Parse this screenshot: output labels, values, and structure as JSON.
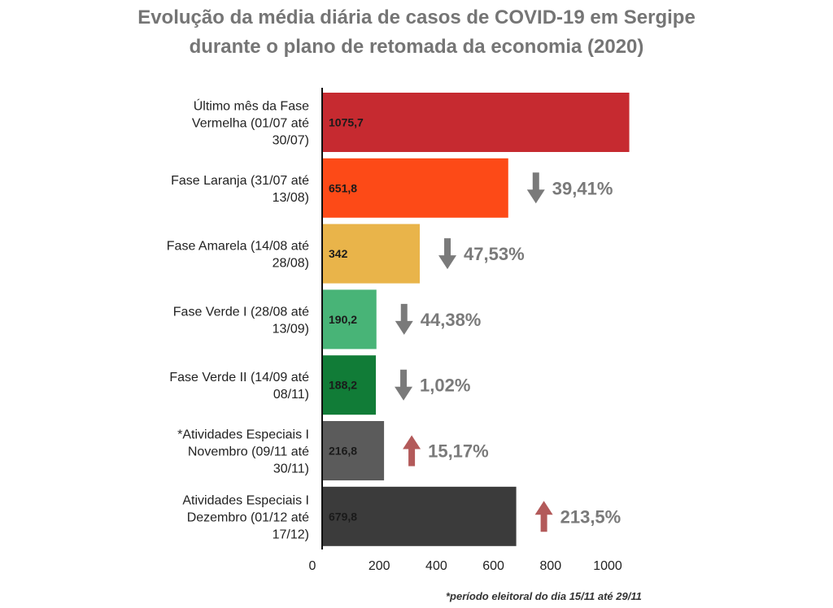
{
  "title_lines": [
    "Evolução da média diária de casos de COVID-19 em Sergipe",
    "durante o plano de retomada da economia (2020)"
  ],
  "footnote": "*período eleitoral do dia 15/11 até 29/11",
  "chart_data": {
    "type": "bar",
    "orientation": "horizontal",
    "title": "Evolução da média diária de casos de COVID-19 em Sergipe durante o plano de retomada da economia (2020)",
    "categories": [
      [
        "Último mês da Fase",
        "Vermelha (01/07 até",
        "30/07)"
      ],
      [
        "Fase Laranja (31/07 até",
        "13/08)"
      ],
      [
        "Fase Amarela (14/08 até",
        "28/08)"
      ],
      [
        "Fase Verde I (28/08 até",
        "13/09)"
      ],
      [
        "Fase Verde II (14/09 até",
        "08/11)"
      ],
      [
        "*Atividades Especiais I",
        "Novembro (09/11 até",
        "30/11)"
      ],
      [
        "Atividades Especiais I",
        "Dezembro (01/12 até",
        "17/12)"
      ]
    ],
    "values": [
      1075.7,
      651.8,
      342,
      190.2,
      188.2,
      216.8,
      679.8
    ],
    "value_labels": [
      "1075,7",
      "651,8",
      "342",
      "190,2",
      "188,2",
      "216,8",
      "679,8"
    ],
    "colors": [
      "#c62a30",
      "#fd4a17",
      "#e9b44a",
      "#48b477",
      "#117c37",
      "#5b5b5b",
      "#3b3b3b"
    ],
    "changes": [
      null,
      {
        "direction": "down",
        "label": "39,41%"
      },
      {
        "direction": "down",
        "label": "47,53%"
      },
      {
        "direction": "down",
        "label": "44,38%"
      },
      {
        "direction": "down",
        "label": "1,02%"
      },
      {
        "direction": "up",
        "label": "15,17%"
      },
      {
        "direction": "up",
        "label": "213,5%"
      }
    ],
    "arrow_colors": {
      "down": "#7a7a7a",
      "up": "#b35a5a"
    },
    "x_ticks": [
      0,
      200,
      400,
      600,
      800,
      1000
    ],
    "xlim": [
      0,
      1100
    ],
    "grid": false
  }
}
